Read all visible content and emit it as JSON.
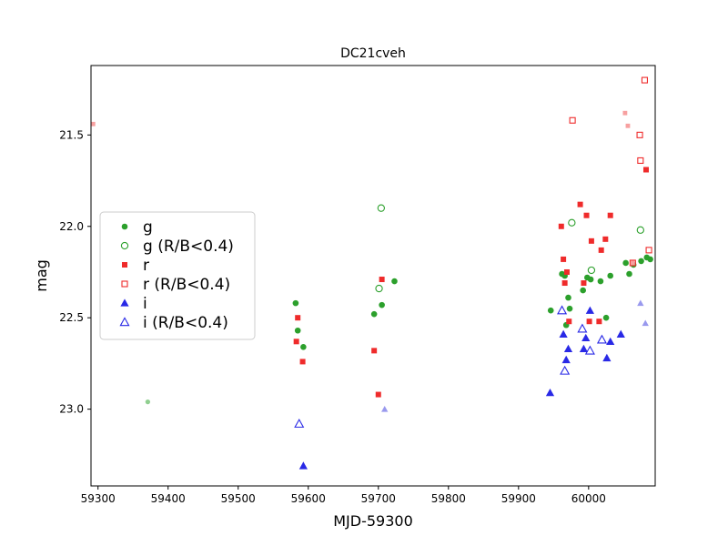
{
  "chart_data": {
    "type": "scatter",
    "title": "DC21cveh",
    "xlabel": "MJD-59300",
    "ylabel": "mag",
    "xlim": [
      59290,
      60095
    ],
    "ylim": [
      23.42,
      21.12
    ],
    "y_inverted": true,
    "xticks": [
      59300,
      59400,
      59500,
      59600,
      59700,
      59800,
      59900,
      60000
    ],
    "xtick_labels": [
      "59300",
      "59400",
      "59500",
      "59600",
      "59700",
      "59800",
      "59900",
      "60000"
    ],
    "yticks": [
      21.5,
      22.0,
      22.5,
      23.0
    ],
    "ytick_labels": [
      "21.5",
      "22.0",
      "22.5",
      "23.0"
    ],
    "grid": false,
    "legend_position": "center-left",
    "series": [
      {
        "name": "g",
        "marker": "circle",
        "filled": true,
        "color": "#2ca02c",
        "points": [
          [
            59582,
            22.42
          ],
          [
            59585,
            22.57
          ],
          [
            59593,
            22.66
          ],
          [
            59694,
            22.48
          ],
          [
            59705,
            22.43
          ],
          [
            59723,
            22.3
          ],
          [
            59946,
            22.46
          ],
          [
            59962,
            22.26
          ],
          [
            59966,
            22.27
          ],
          [
            59968,
            22.54
          ],
          [
            59971,
            22.39
          ],
          [
            59973,
            22.45
          ],
          [
            59992,
            22.35
          ],
          [
            59998,
            22.28
          ],
          [
            60003,
            22.29
          ],
          [
            60017,
            22.3
          ],
          [
            60025,
            22.5
          ],
          [
            60031,
            22.27
          ],
          [
            60053,
            22.2
          ],
          [
            60058,
            22.26
          ],
          [
            60064,
            22.21
          ],
          [
            60075,
            22.19
          ],
          [
            60083,
            22.17
          ],
          [
            60088,
            22.18
          ]
        ]
      },
      {
        "name": "g (R/B<0.4)",
        "marker": "circle",
        "filled": false,
        "color": "#2ca02c",
        "points": [
          [
            59701,
            22.34
          ],
          [
            59704,
            21.9
          ],
          [
            59976,
            21.98
          ],
          [
            60004,
            22.24
          ],
          [
            60074,
            22.02
          ]
        ]
      },
      {
        "name": "r",
        "marker": "square",
        "filled": true,
        "color": "#ef2b2b",
        "points": [
          [
            59583,
            22.63
          ],
          [
            59585,
            22.5
          ],
          [
            59592,
            22.74
          ],
          [
            59694,
            22.68
          ],
          [
            59700,
            22.92
          ],
          [
            59705,
            22.29
          ],
          [
            59961,
            22.0
          ],
          [
            59964,
            22.18
          ],
          [
            59966,
            22.31
          ],
          [
            59969,
            22.25
          ],
          [
            59972,
            22.52
          ],
          [
            59988,
            21.88
          ],
          [
            59993,
            22.31
          ],
          [
            59997,
            21.94
          ],
          [
            60001,
            22.52
          ],
          [
            60004,
            22.08
          ],
          [
            60015,
            22.52
          ],
          [
            60018,
            22.13
          ],
          [
            60024,
            22.07
          ],
          [
            60031,
            21.94
          ],
          [
            60082,
            21.69
          ]
        ]
      },
      {
        "name": "r (R/B<0.4)",
        "marker": "square",
        "filled": false,
        "color": "#ef2b2b",
        "points": [
          [
            59977,
            21.42
          ],
          [
            60063,
            22.2
          ],
          [
            60073,
            21.5
          ],
          [
            60074,
            21.64
          ],
          [
            60080,
            21.2
          ],
          [
            60086,
            22.13
          ]
        ]
      },
      {
        "name": "i",
        "marker": "triangle",
        "filled": true,
        "color": "#2929e6",
        "points": [
          [
            59593,
            23.31
          ],
          [
            59945,
            22.91
          ],
          [
            59964,
            22.59
          ],
          [
            59968,
            22.73
          ],
          [
            59971,
            22.67
          ],
          [
            59993,
            22.67
          ],
          [
            59996,
            22.61
          ],
          [
            60002,
            22.46
          ],
          [
            60026,
            22.72
          ],
          [
            60031,
            22.63
          ],
          [
            60046,
            22.59
          ]
        ]
      },
      {
        "name": "i (R/B<0.4)",
        "marker": "triangle",
        "filled": false,
        "color": "#2929e6",
        "points": [
          [
            59587,
            23.08
          ],
          [
            59962,
            22.46
          ],
          [
            59966,
            22.79
          ],
          [
            59991,
            22.56
          ],
          [
            60002,
            22.68
          ],
          [
            60019,
            22.62
          ]
        ]
      },
      {
        "marker": "circle",
        "filled": true,
        "color": "#90cf90",
        "faded": true,
        "points": [
          [
            59371,
            22.96
          ]
        ]
      },
      {
        "marker": "square",
        "filled": true,
        "color": "#f7a0a0",
        "faded": true,
        "points": [
          [
            59293,
            21.44
          ],
          [
            60052,
            21.38
          ],
          [
            60056,
            21.45
          ],
          [
            60063,
            22.2
          ]
        ]
      },
      {
        "marker": "triangle",
        "filled": true,
        "color": "#9999ee",
        "faded": true,
        "points": [
          [
            59709,
            23.0
          ],
          [
            60074,
            22.42
          ],
          [
            60081,
            22.53
          ]
        ]
      }
    ]
  }
}
